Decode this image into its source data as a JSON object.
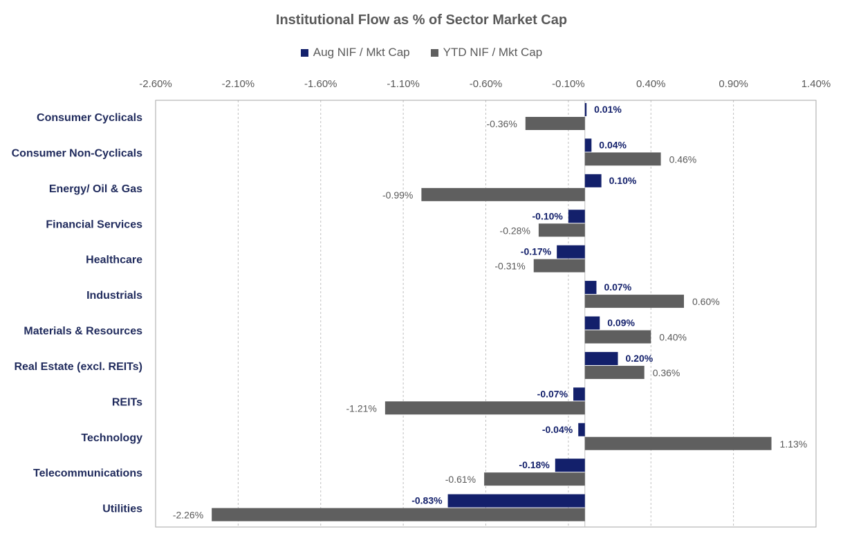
{
  "colors": {
    "aug": "#13206b",
    "ytd": "#5f5f5f",
    "grid": "#bfbfbf",
    "frame": "#a6a6a6"
  },
  "chart_data": {
    "type": "bar",
    "orientation": "horizontal",
    "title": "Institutional Flow as % of Sector Market Cap",
    "xlim": [
      -2.6,
      1.4
    ],
    "xticks": [
      -2.6,
      -2.1,
      -1.6,
      -1.1,
      -0.6,
      -0.1,
      0.4,
      0.9,
      1.4
    ],
    "xtick_labels": [
      "-2.60%",
      "-2.10%",
      "-1.60%",
      "-1.10%",
      "-0.60%",
      "-0.10%",
      "0.40%",
      "0.90%",
      "1.40%"
    ],
    "grid": "vertical dashed",
    "legend_position": "top",
    "categories": [
      "Consumer Cyclicals",
      "Consumer Non-Cyclicals",
      "Energy/ Oil & Gas",
      "Financial Services",
      "Healthcare",
      "Industrials",
      "Materials & Resources",
      "Real Estate (excl. REITs)",
      "REITs",
      "Technology",
      "Telecommunications",
      "Utilities"
    ],
    "series": [
      {
        "name": "Aug NIF / Mkt Cap",
        "values": [
          0.01,
          0.04,
          0.1,
          -0.1,
          -0.17,
          0.07,
          0.09,
          0.2,
          -0.07,
          -0.04,
          -0.18,
          -0.83
        ],
        "labels": [
          "0.01%",
          "0.04%",
          "0.10%",
          "-0.10%",
          "-0.17%",
          "0.07%",
          "0.09%",
          "0.20%",
          "-0.07%",
          "-0.04%",
          "-0.18%",
          "-0.83%"
        ]
      },
      {
        "name": "YTD NIF / Mkt Cap",
        "values": [
          -0.36,
          0.46,
          -0.99,
          -0.28,
          -0.31,
          0.6,
          0.4,
          0.36,
          -1.21,
          1.13,
          -0.61,
          -2.26
        ],
        "labels": [
          "-0.36%",
          "0.46%",
          "-0.99%",
          "-0.28%",
          "-0.31%",
          "0.60%",
          "0.40%",
          "0.36%",
          "-1.21%",
          "1.13%",
          "-0.61%",
          "-2.26%"
        ]
      }
    ]
  }
}
